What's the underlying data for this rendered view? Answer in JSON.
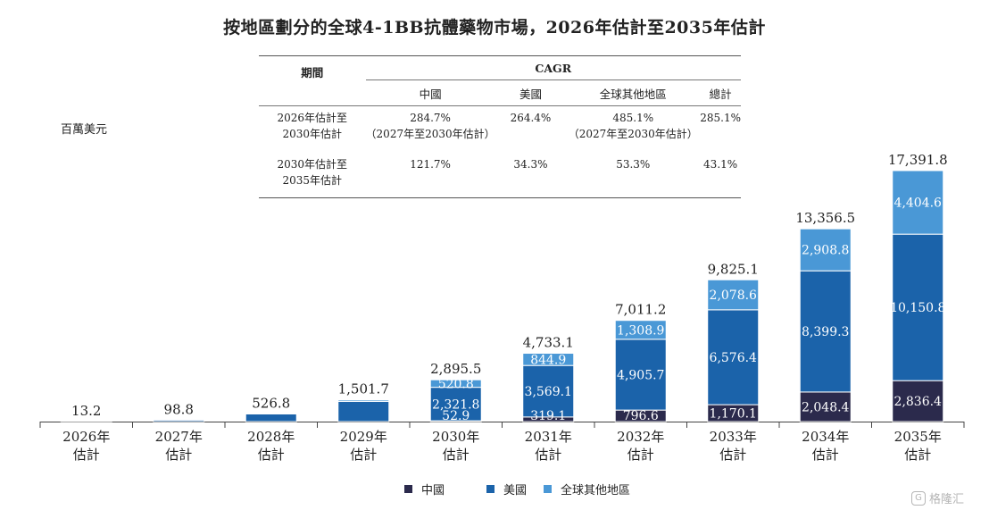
{
  "title": "按地區劃分的全球4-1BB抗體藥物市場，2026年估計至2035年估計",
  "unit": "百萬美元",
  "cagr_table": {
    "period_header": "期間",
    "cagr_header": "CAGR",
    "columns": [
      "中國",
      "美國",
      "全球其他地區",
      "總計"
    ],
    "rows": [
      {
        "period_line1": "2026年估計至",
        "period_line2": "2030年估計",
        "china": "284.7%",
        "china_note": "（2027年至2030年估計）",
        "us": "264.4%",
        "row": "485.1%",
        "row_note": "（2027年至2030年估計）",
        "total": "285.1%"
      },
      {
        "period_line1": "2030年估計至",
        "period_line2": "2035年估計",
        "china": "121.7%",
        "china_note": "",
        "us": "34.3%",
        "row": "53.3%",
        "row_note": "",
        "total": "43.1%"
      }
    ]
  },
  "legend": [
    {
      "label": "中國",
      "color": "#2b2a4c"
    },
    {
      "label": "美國",
      "color": "#1b63aa"
    },
    {
      "label": "全球其他地區",
      "color": "#4a98d6"
    }
  ],
  "watermark": "格隆汇",
  "chart_data": {
    "type": "bar",
    "stacked": true,
    "categories": [
      [
        "2026年",
        "估計"
      ],
      [
        "2027年",
        "估計"
      ],
      [
        "2028年",
        "估計"
      ],
      [
        "2029年",
        "估計"
      ],
      [
        "2030年",
        "估計"
      ],
      [
        "2031年",
        "估計"
      ],
      [
        "2032年",
        "估計"
      ],
      [
        "2033年",
        "估計"
      ],
      [
        "2034年",
        "估計"
      ],
      [
        "2035年",
        "估計"
      ]
    ],
    "totals": [
      "13.2",
      "98.8",
      "526.8",
      "1,501.7",
      "2,895.5",
      "4,733.1",
      "7,011.2",
      "9,825.1",
      "13,356.5",
      "17,391.8"
    ],
    "total_values": [
      13.2,
      98.8,
      526.8,
      1501.7,
      2895.5,
      4733.1,
      7011.2,
      9825.1,
      13356.5,
      17391.8
    ],
    "series": [
      {
        "name": "中國",
        "color": "#2b2a4c",
        "values": [
          0,
          0,
          0,
          0,
          52.9,
          319.1,
          796.6,
          1170.1,
          2048.4,
          2836.4
        ],
        "labels": [
          "",
          "",
          "",
          "",
          "52.9",
          "319.1",
          "796.6",
          "1,170.1",
          "2,048.4",
          "2,836.4"
        ]
      },
      {
        "name": "美國",
        "color": "#1b63aa",
        "values": [
          13.2,
          98.8,
          526.8,
          1401.7,
          2321.8,
          3569.1,
          4905.7,
          6576.4,
          8399.3,
          10150.8
        ],
        "labels": [
          "",
          "",
          "",
          "",
          "2,321.8",
          "3,569.1",
          "4,905.7",
          "6,576.4",
          "8,399.3",
          "10,150.8"
        ]
      },
      {
        "name": "全球其他地區",
        "color": "#4a98d6",
        "values": [
          0,
          0,
          0,
          100.0,
          520.8,
          844.9,
          1308.9,
          2078.6,
          2908.8,
          4404.6
        ],
        "labels": [
          "",
          "",
          "",
          "",
          "520.8",
          "844.9",
          "1,308.9",
          "2,078.6",
          "2,908.8",
          "4,404.6"
        ]
      }
    ],
    "ylim": [
      0,
      17391.8
    ]
  }
}
